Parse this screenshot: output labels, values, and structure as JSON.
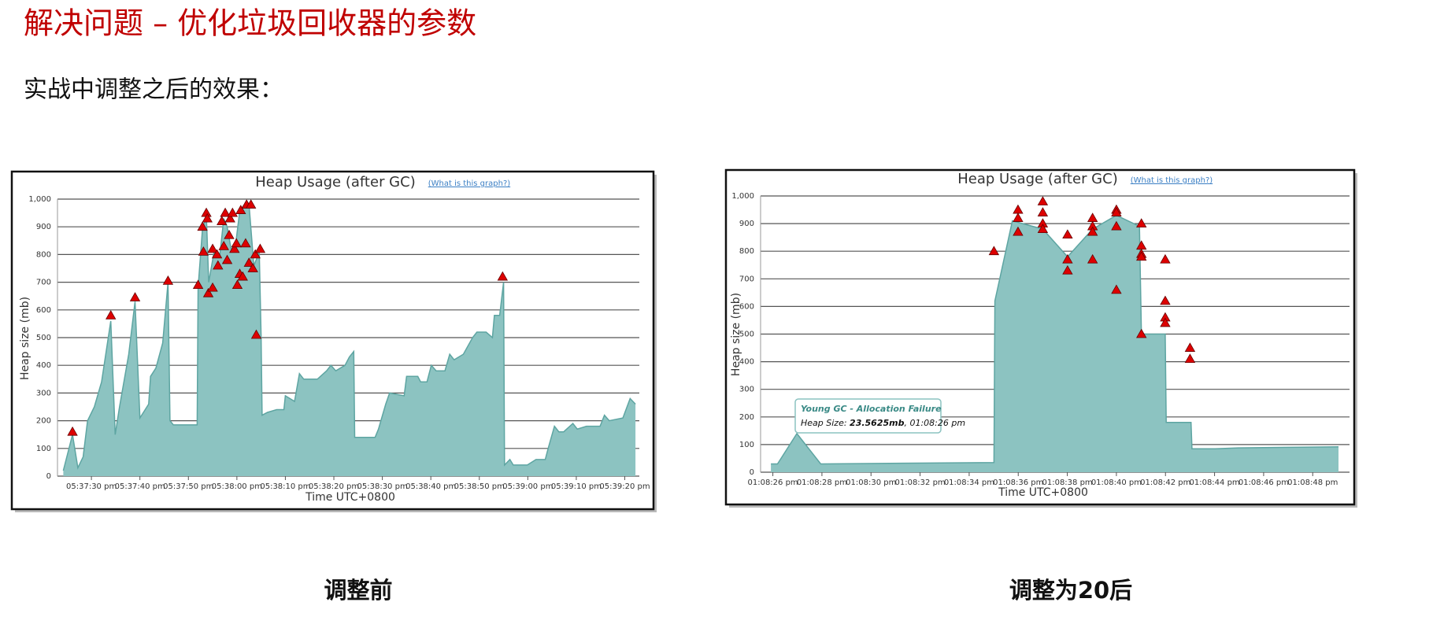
{
  "slide": {
    "title": "解决问题 – 优化垃圾回收器的参数",
    "subtitle": "实战中调整之后的效果：",
    "captions": [
      "调整前",
      "调整为20后"
    ]
  },
  "chart_data": [
    {
      "type": "area",
      "title": "Heap Usage (after GC)",
      "link": "(What is this graph?)",
      "x_label": "Time UTC+0800",
      "y_label": "Heap size (mb)",
      "color": "#8cc3c1",
      "line_color": "#5ea5a2",
      "marker_color": "#dd0000",
      "grid": true,
      "xlim": [
        63443,
        63563
      ],
      "xticks": [
        {
          "value": 63450,
          "label": "05:37:30 pm"
        },
        {
          "value": 63460,
          "label": "05:37:40 pm"
        },
        {
          "value": 63470,
          "label": "05:37:50 pm"
        },
        {
          "value": 63480,
          "label": "05:38:00 pm"
        },
        {
          "value": 63490,
          "label": "05:38:10 pm"
        },
        {
          "value": 63500,
          "label": "05:38:20 pm"
        },
        {
          "value": 63510,
          "label": "05:38:30 pm"
        },
        {
          "value": 63520,
          "label": "05:38:40 pm"
        },
        {
          "value": 63530,
          "label": "05:38:50 pm"
        },
        {
          "value": 63540,
          "label": "05:39:00 pm"
        },
        {
          "value": 63550,
          "label": "05:39:10 pm"
        },
        {
          "value": 63560,
          "label": "05:39:20 pm"
        }
      ],
      "ylim": [
        0,
        1000
      ],
      "yticks": [
        0,
        100,
        200,
        300,
        400,
        500,
        600,
        700,
        800,
        900,
        {
          "value": 1000,
          "label": "1,000"
        }
      ],
      "x": [
        63444.2,
        63446.1,
        63447.2,
        63448.3,
        63449.2,
        63450.6,
        63452.1,
        63454.0,
        63454.9,
        63455.8,
        63457.7,
        63459.0,
        63460.0,
        63461.8,
        63462.2,
        63463.3,
        63464.7,
        63465.8,
        63466.2,
        63466.9,
        63471.8,
        63472.0,
        63472.9,
        63473.7,
        63474.2,
        63475.4,
        63476.5,
        63477.3,
        63478.0,
        63478.8,
        63479.7,
        63480.6,
        63481.6,
        63482.5,
        63483.5,
        63484.2,
        63484.6,
        63485.0,
        63485.2,
        63486.3,
        63488.2,
        63489.7,
        63490.0,
        63491.9,
        63492.9,
        63493.8,
        63496.6,
        63498.5,
        63499.4,
        63500.4,
        63502.3,
        63503.2,
        63504.1,
        63504.3,
        63508.5,
        63509.2,
        63510.7,
        63511.5,
        63514.5,
        63515.0,
        63517.3,
        63517.9,
        63519.2,
        63520.1,
        63521.1,
        63522.9,
        63523.9,
        63524.8,
        63526.7,
        63528.6,
        63529.5,
        63531.4,
        63532.7,
        63533.1,
        63534.2,
        63535.0,
        63535.2,
        63536.3,
        63537.0,
        63539.9,
        63541.7,
        63543.6,
        63544.2,
        63545.5,
        63546.4,
        63547.4,
        63549.3,
        63550.2,
        63552.1,
        63554.9,
        63555.8,
        63556.8,
        63559.6,
        63561.1,
        63562.2
      ],
      "values": [
        20,
        150,
        30,
        70,
        200,
        250,
        340,
        560,
        150,
        250,
        440,
        630,
        210,
        260,
        360,
        390,
        480,
        700,
        200,
        185,
        185,
        680,
        890,
        940,
        700,
        820,
        800,
        930,
        900,
        820,
        830,
        960,
        980,
        980,
        760,
        790,
        820,
        510,
        220,
        230,
        240,
        240,
        290,
        270,
        370,
        350,
        350,
        380,
        400,
        380,
        400,
        430,
        450,
        140,
        140,
        170,
        260,
        300,
        290,
        360,
        360,
        340,
        340,
        400,
        380,
        380,
        440,
        420,
        440,
        500,
        520,
        520,
        500,
        580,
        580,
        700,
        40,
        60,
        40,
        40,
        60,
        60,
        100,
        180,
        160,
        160,
        190,
        170,
        180,
        180,
        220,
        200,
        210,
        280,
        260
      ],
      "markers": {
        "x": [
          63446.1,
          63454.0,
          63459.0,
          63465.8,
          63472.0,
          63472.9,
          63473.1,
          63473.7,
          63473.9,
          63474.1,
          63475.0,
          63475.0,
          63475.9,
          63476.1,
          63476.9,
          63477.3,
          63477.6,
          63478.0,
          63478.4,
          63478.6,
          63479.1,
          63479.5,
          63479.9,
          63480.1,
          63480.6,
          63480.8,
          63481.2,
          63481.8,
          63482.0,
          63482.5,
          63482.9,
          63483.3,
          63483.8,
          63484.0,
          63484.8,
          63534.8
        ],
        "values": [
          160,
          580,
          645,
          705,
          690,
          900,
          810,
          950,
          930,
          660,
          680,
          820,
          800,
          760,
          920,
          830,
          950,
          780,
          870,
          930,
          950,
          820,
          840,
          690,
          730,
          960,
          720,
          840,
          980,
          770,
          980,
          750,
          800,
          510,
          820,
          720
        ]
      }
    },
    {
      "type": "area",
      "title": "Heap Usage (after GC)",
      "link": "(What is this graph?)",
      "x_label": "Time UTC+0800",
      "y_label": "Heap size (mb)",
      "color": "#8cc3c1",
      "line_color": "#5ea5a2",
      "marker_color": "#dd0000",
      "grid": true,
      "xlim": [
        47305.5,
        47329.5
      ],
      "xticks": [
        {
          "value": 47306,
          "label": "01:08:26 pm"
        },
        {
          "value": 47308,
          "label": "01:08:28 pm"
        },
        {
          "value": 47310,
          "label": "01:08:30 pm"
        },
        {
          "value": 47312,
          "label": "01:08:32 pm"
        },
        {
          "value": 47314,
          "label": "01:08:34 pm"
        },
        {
          "value": 47316,
          "label": "01:08:36 pm"
        },
        {
          "value": 47318,
          "label": "01:08:38 pm"
        },
        {
          "value": 47320,
          "label": "01:08:40 pm"
        },
        {
          "value": 47322,
          "label": "01:08:42 pm"
        },
        {
          "value": 47324,
          "label": "01:08:44 pm"
        },
        {
          "value": 47326,
          "label": "01:08:46 pm"
        },
        {
          "value": 47328,
          "label": "01:08:48 pm"
        }
      ],
      "ylim": [
        0,
        1000
      ],
      "yticks": [
        0,
        100,
        200,
        300,
        400,
        500,
        600,
        700,
        800,
        900,
        {
          "value": 1000,
          "label": "1,000"
        }
      ],
      "x": [
        47305.92,
        47306.19,
        47306.98,
        47307.95,
        47315.01,
        47315.05,
        47315.76,
        47317.0,
        47318.01,
        47319.03,
        47320.0,
        47320.94,
        47321.02,
        47321.99,
        47322.03,
        47323.04,
        47323.08,
        47324.02,
        47324.96,
        47327.02,
        47329.05
      ],
      "values": [
        30,
        30,
        140,
        30,
        35,
        620,
        910,
        880,
        780,
        880,
        930,
        890,
        500,
        500,
        180,
        180,
        85,
        85,
        88,
        90,
        92
      ],
      "markers": {
        "x": [
          47315.01,
          47315.99,
          47315.99,
          47315.99,
          47317.0,
          47317.0,
          47317.0,
          47317.0,
          47318.01,
          47318.01,
          47318.01,
          47319.03,
          47319.03,
          47319.03,
          47319.03,
          47320.0,
          47320.0,
          47320.0,
          47320.0,
          47321.02,
          47321.02,
          47321.02,
          47321.02,
          47321.02,
          47321.99,
          47321.99,
          47321.99,
          47321.99,
          47323.0,
          47323.0
        ],
        "values": [
          800,
          950,
          920,
          870,
          980,
          940,
          900,
          880,
          860,
          770,
          730,
          920,
          890,
          870,
          770,
          950,
          940,
          890,
          660,
          900,
          820,
          790,
          780,
          500,
          770,
          620,
          560,
          540,
          450,
          410
        ]
      },
      "annotation": {
        "title": "Young GC - Allocation Failure",
        "label": "Heap Size: ",
        "value": "23.5625mb",
        "time": ", 01:08:26 pm"
      }
    }
  ]
}
